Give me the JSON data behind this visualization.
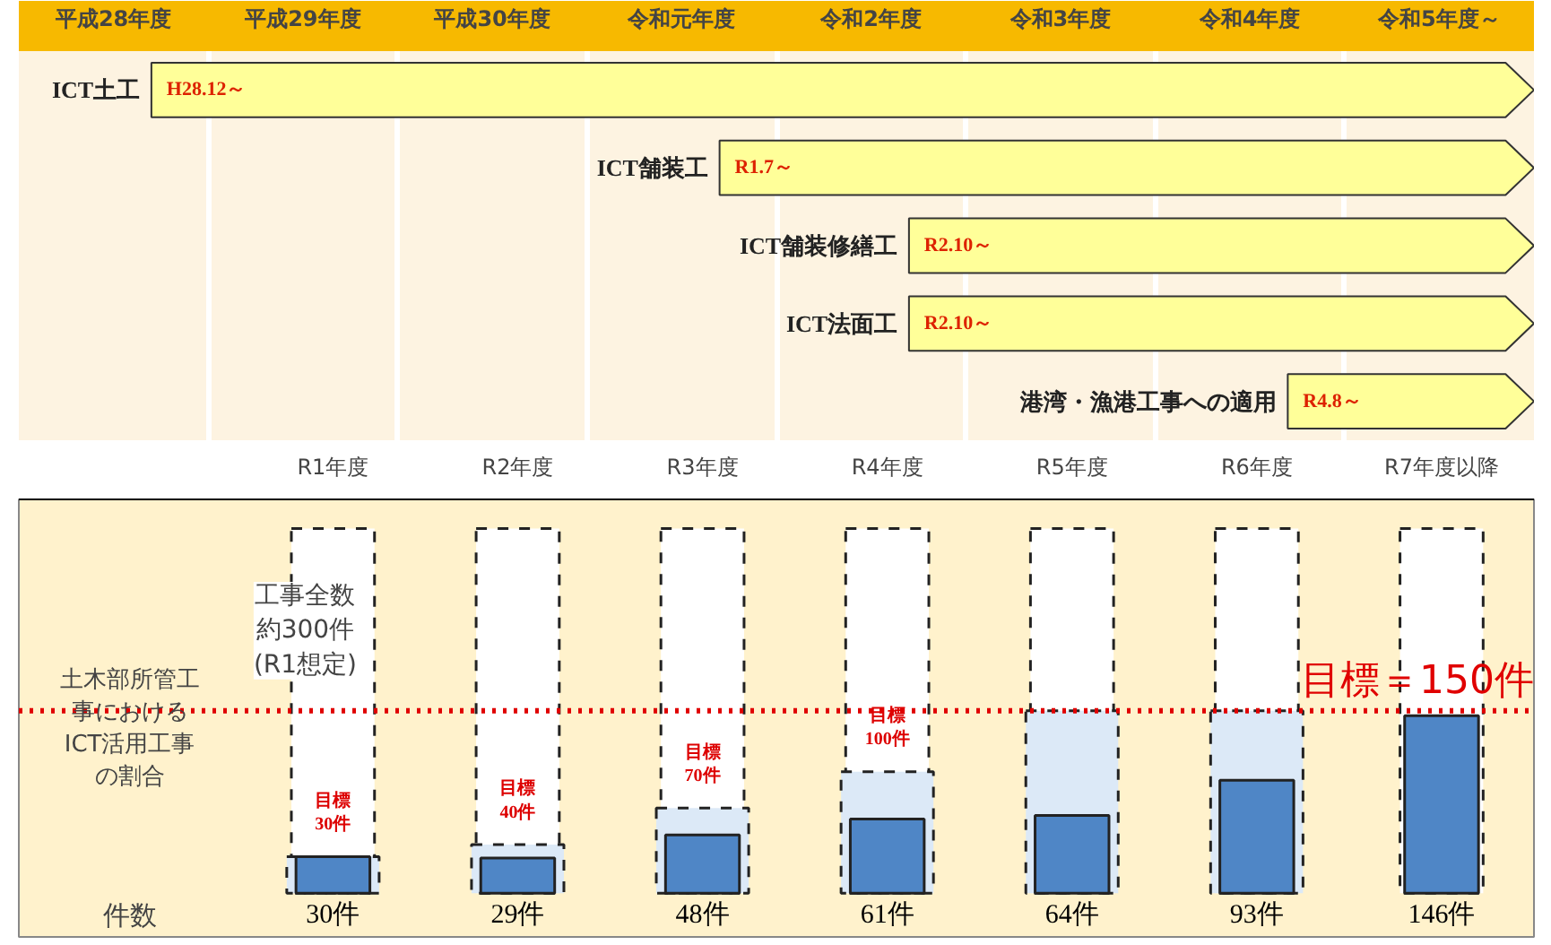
{
  "chart_data": [
    {
      "type": "other",
      "categories": [
        "平成28年度",
        "平成29年度",
        "平成30年度",
        "令和元年度",
        "令和2年度",
        "令和3年度",
        "令和4年度",
        "令和5年度～"
      ],
      "y_categories": [
        "ICT土工",
        "ICT舗装工",
        "ICT舗装修繕工",
        "ICT法面工",
        "港湾・漁港工事への適用"
      ],
      "color": "#ffff99",
      "annotations": [
        {
          "text": "H28.12～",
          "x": "平成28年度",
          "y": "ICT土工"
        },
        {
          "text": "R1.7～",
          "x": "令和元年度",
          "y": "ICT舗装工"
        },
        {
          "text": "R2.10～",
          "x": "令和2年度",
          "y": "ICT舗装修繕工"
        },
        {
          "text": "R2.10～",
          "x": "令和2年度",
          "y": "ICT法面工"
        },
        {
          "text": "R4.8～",
          "x": "令和4年度",
          "y": "港湾・漁港工事への適用"
        }
      ]
    },
    {
      "type": "bar",
      "categories": [
        "R1年度",
        "R2年度",
        "R3年度",
        "R4年度",
        "R5年度",
        "R6年度",
        "R7年度以降"
      ],
      "ylabel": "土木部所管工事におけるICT活用工事の割合",
      "series": [
        {
          "color": "#ffffff",
          "values": [
            300,
            300,
            300,
            300,
            300,
            300,
            300
          ],
          "line_style": "dashed"
        },
        {
          "color": "#dce9f7",
          "values": [
            30,
            40,
            70,
            100,
            150,
            150,
            null
          ],
          "line_style": "dashed",
          "value_labels": [
            "目標30件",
            "目標40件",
            "目標70件",
            "目標100件",
            null,
            null,
            null
          ]
        },
        {
          "color": "#4f86c6",
          "values": [
            30,
            29,
            48,
            61,
            64,
            93,
            146
          ],
          "line_style": "solid",
          "value_labels": [
            "30件",
            "29件",
            "48件",
            "61件",
            "64件",
            "93件",
            "146件"
          ]
        }
      ],
      "ref_lines": [
        {
          "axis": "y",
          "value": 150,
          "label": "目標＝150件",
          "color": "#e00000",
          "line_style": "dotted"
        }
      ],
      "annotations": [
        "工事全数約300件(R1想定)",
        "件数"
      ],
      "tick_labels": "x"
    }
  ]
}
